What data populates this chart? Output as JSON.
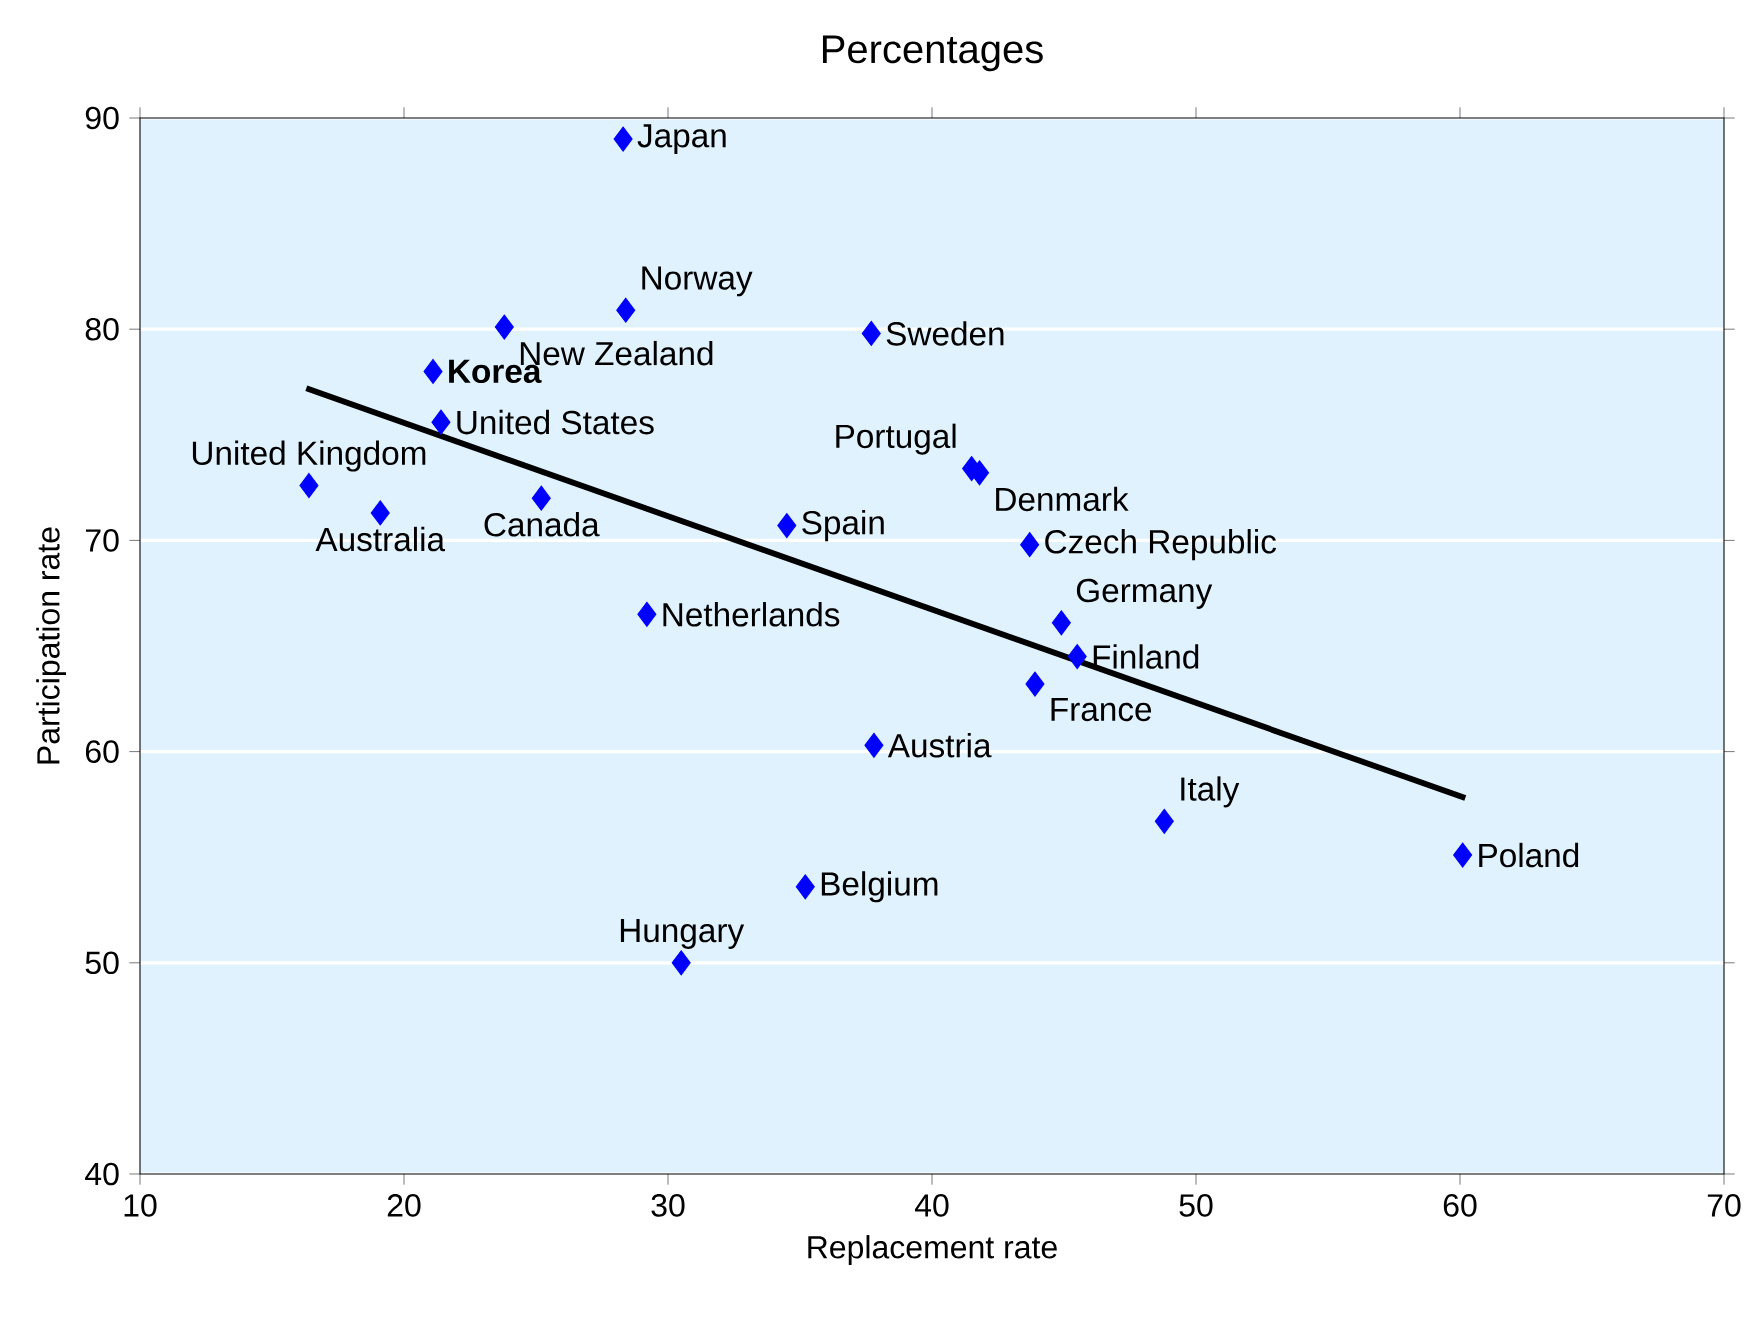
{
  "chart_data": {
    "type": "scatter",
    "title": "Percentages",
    "xlabel": "Replacement rate",
    "ylabel": "Participation rate",
    "xlim": [
      10,
      70
    ],
    "xticks": [
      10,
      20,
      30,
      40,
      50,
      60,
      70
    ],
    "ylim": [
      40,
      90
    ],
    "yticks": [
      40,
      50,
      60,
      70,
      80,
      90
    ],
    "grid": "y",
    "marker": "diamond",
    "series": [
      {
        "color": "#0000ff",
        "x": [
          28.3,
          28.4,
          23.8,
          37.7,
          21.1,
          21.4,
          41.5,
          41.8,
          16.4,
          19.1,
          25.2,
          34.5,
          43.7,
          29.2,
          44.9,
          45.5,
          43.9,
          37.8,
          48.8,
          60.1,
          35.2,
          30.5
        ],
        "values": [
          89.0,
          80.9,
          80.1,
          79.8,
          78.0,
          75.6,
          73.4,
          73.2,
          72.6,
          71.3,
          72.0,
          70.7,
          69.8,
          66.5,
          66.1,
          64.5,
          63.2,
          60.3,
          56.7,
          55.1,
          53.6,
          50.0
        ]
      },
      {
        "type": "line",
        "color": "#000000",
        "marker": "none",
        "x": [
          16.3,
          60.2
        ],
        "values": [
          77.2,
          57.8
        ]
      }
    ],
    "annotations": [
      {
        "text": "Japan",
        "x": 28.3,
        "y": 89.0
      },
      {
        "text": "Norway",
        "x": 28.4,
        "y": 80.9
      },
      {
        "text": "New Zealand",
        "x": 23.8,
        "y": 80.1
      },
      {
        "text": "Sweden",
        "x": 37.7,
        "y": 79.8
      },
      {
        "text": "**Korea**",
        "x": 21.1,
        "y": 78.0
      },
      {
        "text": "United States",
        "x": 21.4,
        "y": 75.6
      },
      {
        "text": "Portugal",
        "x": 41.5,
        "y": 73.4
      },
      {
        "text": "Denmark",
        "x": 41.8,
        "y": 73.2
      },
      {
        "text": "United Kingdom",
        "x": 16.4,
        "y": 72.6
      },
      {
        "text": "Australia",
        "x": 19.1,
        "y": 71.3
      },
      {
        "text": "Canada",
        "x": 25.2,
        "y": 72.0
      },
      {
        "text": "Spain",
        "x": 34.5,
        "y": 70.7
      },
      {
        "text": "Czech Republic",
        "x": 43.7,
        "y": 69.8
      },
      {
        "text": "Netherlands",
        "x": 29.2,
        "y": 66.5
      },
      {
        "text": "Germany",
        "x": 44.9,
        "y": 66.1
      },
      {
        "text": "Finland",
        "x": 45.5,
        "y": 64.5
      },
      {
        "text": "France",
        "x": 43.9,
        "y": 63.2
      },
      {
        "text": "Austria",
        "x": 37.8,
        "y": 60.3
      },
      {
        "text": "Italy",
        "x": 48.8,
        "y": 56.7
      },
      {
        "text": "Poland",
        "x": 60.1,
        "y": 55.1
      },
      {
        "text": "Belgium",
        "x": 35.2,
        "y": 53.6
      },
      {
        "text": "Hungary",
        "x": 30.5,
        "y": 50.0
      }
    ]
  }
}
